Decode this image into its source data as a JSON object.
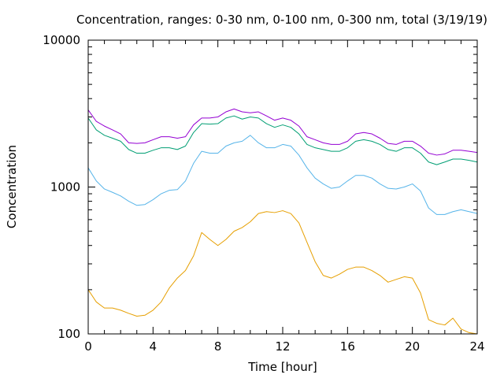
{
  "chart_data": {
    "type": "line",
    "title": "Concentration, ranges: 0-30 nm, 0-100 nm, 0-300 nm, total (3/19/19)",
    "xlabel": "Time [hour]",
    "ylabel": "Concentration",
    "xlim": [
      0,
      24
    ],
    "ylim": [
      100,
      10000
    ],
    "yscale": "log",
    "grid": false,
    "legend": "none",
    "x_ticks": [
      0,
      4,
      8,
      12,
      16,
      20,
      24
    ],
    "x_tick_labels": [
      "0",
      "4",
      "8",
      "12",
      "16",
      "20",
      "24"
    ],
    "y_ticks": [
      100,
      1000,
      10000
    ],
    "y_tick_labels": [
      "100",
      "1000",
      "10000"
    ],
    "x": [
      0,
      0.5,
      1,
      1.5,
      2,
      2.5,
      3,
      3.5,
      4,
      4.5,
      5,
      5.5,
      6,
      6.5,
      7,
      7.5,
      8,
      8.5,
      9,
      9.5,
      10,
      10.5,
      11,
      11.5,
      12,
      12.5,
      13,
      13.5,
      14,
      14.5,
      15,
      15.5,
      16,
      16.5,
      17,
      17.5,
      18,
      18.5,
      19,
      19.5,
      20,
      20.5,
      21,
      21.5,
      22,
      22.5,
      23,
      23.5,
      24
    ],
    "series": [
      {
        "color": "#e69f00",
        "values": [
          200,
          165,
          150,
          150,
          145,
          138,
          132,
          134,
          145,
          165,
          205,
          240,
          270,
          340,
          490,
          440,
          400,
          440,
          500,
          530,
          580,
          660,
          680,
          670,
          690,
          660,
          570,
          420,
          310,
          250,
          240,
          255,
          275,
          285,
          285,
          270,
          250,
          225,
          235,
          245,
          240,
          190,
          125,
          118,
          115,
          128,
          108,
          102,
          100
        ]
      },
      {
        "color": "#56b4e9",
        "values": [
          1350,
          1100,
          970,
          920,
          870,
          800,
          750,
          760,
          820,
          900,
          950,
          960,
          1100,
          1450,
          1750,
          1700,
          1700,
          1900,
          2000,
          2050,
          2250,
          2000,
          1850,
          1850,
          1950,
          1900,
          1650,
          1350,
          1150,
          1050,
          980,
          1000,
          1100,
          1200,
          1200,
          1150,
          1050,
          980,
          970,
          1000,
          1050,
          940,
          720,
          650,
          650,
          680,
          700,
          680,
          660
        ]
      },
      {
        "color": "#009e73",
        "values": [
          2950,
          2450,
          2250,
          2150,
          2050,
          1800,
          1700,
          1700,
          1780,
          1850,
          1850,
          1800,
          1900,
          2350,
          2700,
          2680,
          2700,
          2950,
          3050,
          2900,
          3000,
          2950,
          2700,
          2550,
          2650,
          2550,
          2300,
          1950,
          1850,
          1800,
          1750,
          1750,
          1850,
          2050,
          2100,
          2050,
          1950,
          1800,
          1750,
          1850,
          1850,
          1700,
          1480,
          1420,
          1480,
          1550,
          1550,
          1520,
          1480
        ]
      },
      {
        "color": "#9400d3",
        "values": [
          3350,
          2800,
          2600,
          2450,
          2300,
          2000,
          1980,
          2000,
          2100,
          2200,
          2200,
          2150,
          2200,
          2650,
          2950,
          2950,
          3000,
          3250,
          3400,
          3250,
          3200,
          3250,
          3050,
          2850,
          2950,
          2850,
          2600,
          2200,
          2100,
          2000,
          1950,
          1950,
          2050,
          2300,
          2350,
          2300,
          2150,
          1980,
          1950,
          2050,
          2050,
          1900,
          1700,
          1650,
          1680,
          1780,
          1780,
          1750,
          1720
        ]
      }
    ]
  }
}
